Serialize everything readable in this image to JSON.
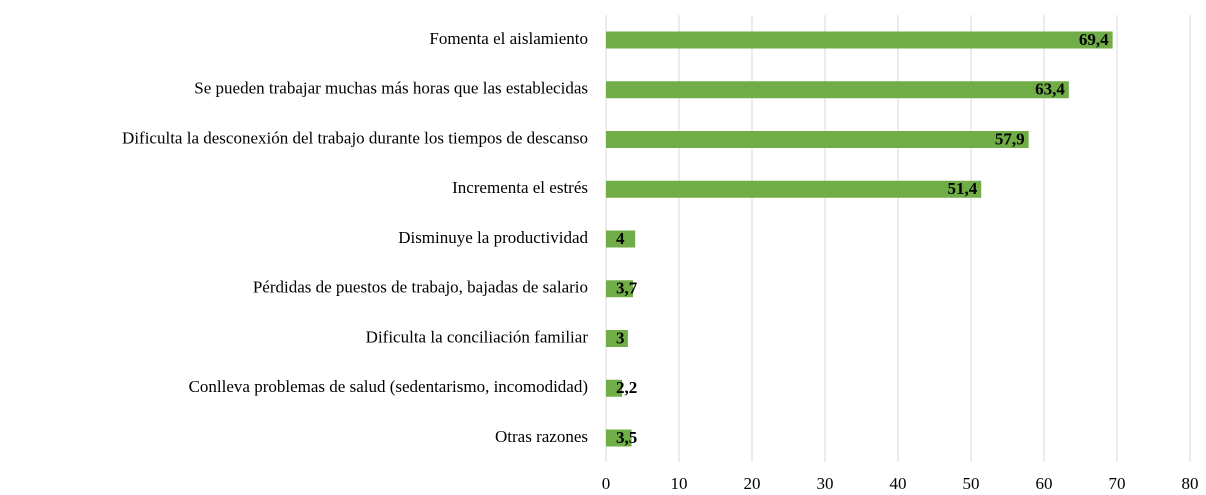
{
  "chart_data": {
    "type": "barh",
    "categories": [
      "Fomenta el aislamiento",
      "Se pueden trabajar muchas más horas que las establecidas",
      "Dificulta la desconexión del trabajo durante los tiempos de descanso",
      "Incrementa el estrés",
      "Disminuye la productividad",
      "Pérdidas de puestos de trabajo, bajadas de salario",
      "Dificulta la conciliación familiar",
      "Conlleva problemas de salud (sedentarismo, incomodidad)",
      "Otras razones"
    ],
    "values": [
      69.4,
      63.4,
      57.9,
      51.4,
      4,
      3.7,
      3,
      2.2,
      3.5
    ],
    "value_labels": [
      "69,4",
      "63,4",
      "57,9",
      "51,4",
      "4",
      "3,7",
      "3",
      "2,2",
      "3,5"
    ],
    "color": "#70ad47",
    "xlim": [
      0,
      80
    ],
    "xticks": [
      0,
      10,
      20,
      30,
      40,
      50,
      60,
      70,
      80
    ],
    "grid": true
  }
}
